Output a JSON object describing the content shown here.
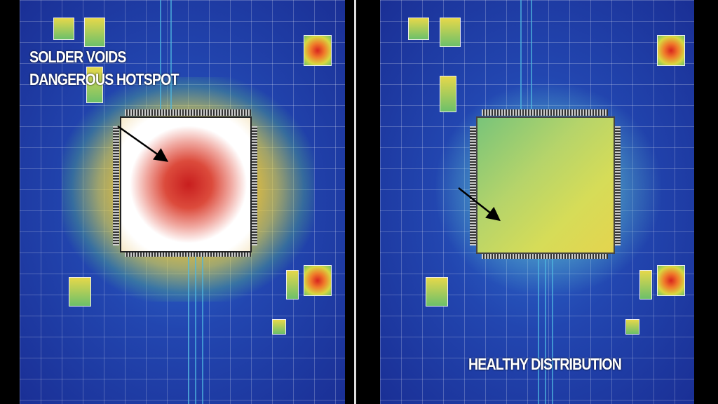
{
  "left_panel": {
    "label_line1": "SOLDER VOIDS",
    "label_line2": "DANGEROUS HOTSPOT",
    "heat_state": "hotspot"
  },
  "right_panel": {
    "label": "HEALTHY DISTRIBUTION",
    "heat_state": "even"
  },
  "colors": {
    "board": "#2246b0",
    "hot": "#d8241e",
    "even": "#c8d860"
  }
}
